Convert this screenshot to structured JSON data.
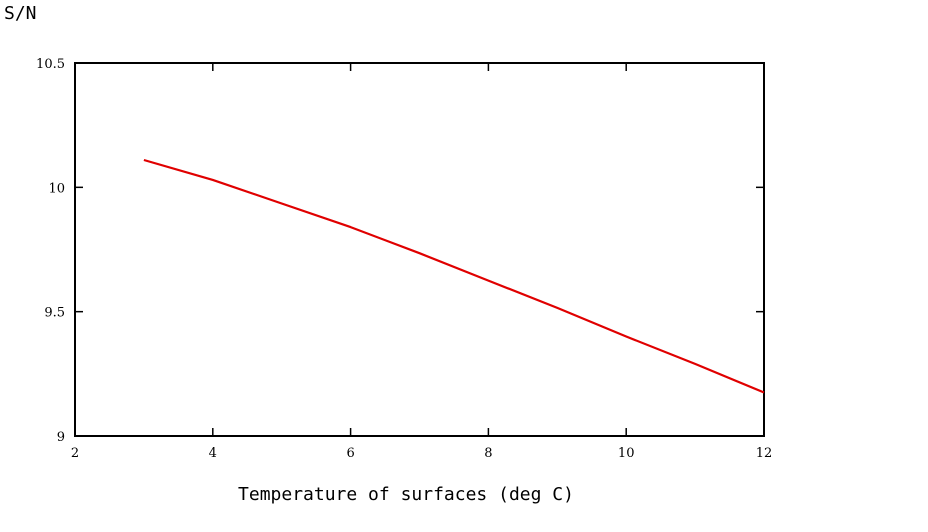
{
  "chart_data": {
    "type": "line",
    "title": "",
    "xlabel": "Temperature of surfaces (deg C)",
    "ylabel": "S/N",
    "xlim": [
      2,
      12
    ],
    "ylim": [
      9,
      10.5
    ],
    "x_ticks": [
      2,
      4,
      6,
      8,
      10,
      12
    ],
    "y_ticks": [
      9,
      9.5,
      10,
      10.5
    ],
    "x_tick_labels": [
      "2",
      "4",
      "6",
      "8",
      "10",
      "12"
    ],
    "y_tick_labels": [
      "9",
      "9.5",
      "10",
      "10.5"
    ],
    "grid": false,
    "series": [
      {
        "color": "#e00000",
        "x": [
          3,
          4,
          5,
          6,
          7,
          8,
          9,
          10,
          11,
          12
        ],
        "y": [
          10.11,
          10.03,
          9.935,
          9.84,
          9.735,
          9.625,
          9.515,
          9.4,
          9.29,
          9.175
        ]
      }
    ]
  }
}
